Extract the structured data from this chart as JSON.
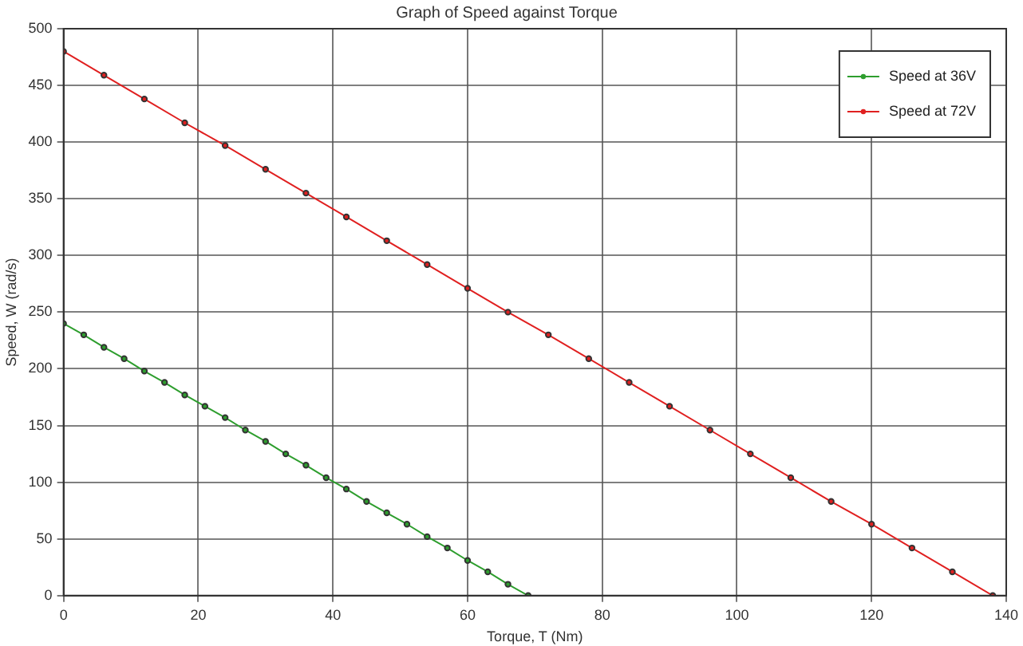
{
  "chart_data": {
    "type": "line",
    "title": "Graph of Speed against Torque",
    "xlabel": "Torque, T (Nm)",
    "ylabel": "Speed, W (rad/s)",
    "xlim": [
      0,
      140
    ],
    "xticks": [
      0,
      20,
      40,
      60,
      80,
      100,
      120,
      140
    ],
    "ylim": [
      0,
      500
    ],
    "yticks": [
      0,
      50,
      100,
      150,
      200,
      250,
      300,
      350,
      400,
      450,
      500
    ],
    "grid": true,
    "legend": "top right",
    "marker": "circle",
    "line_style": "solid",
    "series": [
      {
        "name": "Speed at 36V",
        "color": "#2e9e2e",
        "x": [
          0,
          3,
          6,
          9,
          12,
          15,
          18,
          21,
          24,
          27,
          30,
          33,
          36,
          39,
          42,
          45,
          48,
          51,
          54,
          57,
          60,
          63,
          66,
          69
        ],
        "values": [
          240,
          230,
          219,
          209,
          198,
          188,
          177,
          167,
          157,
          146,
          136,
          125,
          115,
          104,
          94,
          83,
          73,
          63,
          52,
          42,
          31,
          21,
          10,
          0
        ]
      },
      {
        "name": "Speed at 72V",
        "color": "#e02020",
        "x": [
          0,
          6,
          12,
          18,
          24,
          30,
          36,
          42,
          48,
          54,
          60,
          66,
          72,
          78,
          84,
          90,
          96,
          102,
          108,
          114,
          120,
          126,
          132,
          138
        ],
        "values": [
          480,
          459,
          438,
          417,
          397,
          376,
          355,
          334,
          313,
          292,
          271,
          250,
          230,
          209,
          188,
          167,
          146,
          125,
          104,
          83,
          63,
          42,
          21,
          0
        ]
      }
    ]
  }
}
